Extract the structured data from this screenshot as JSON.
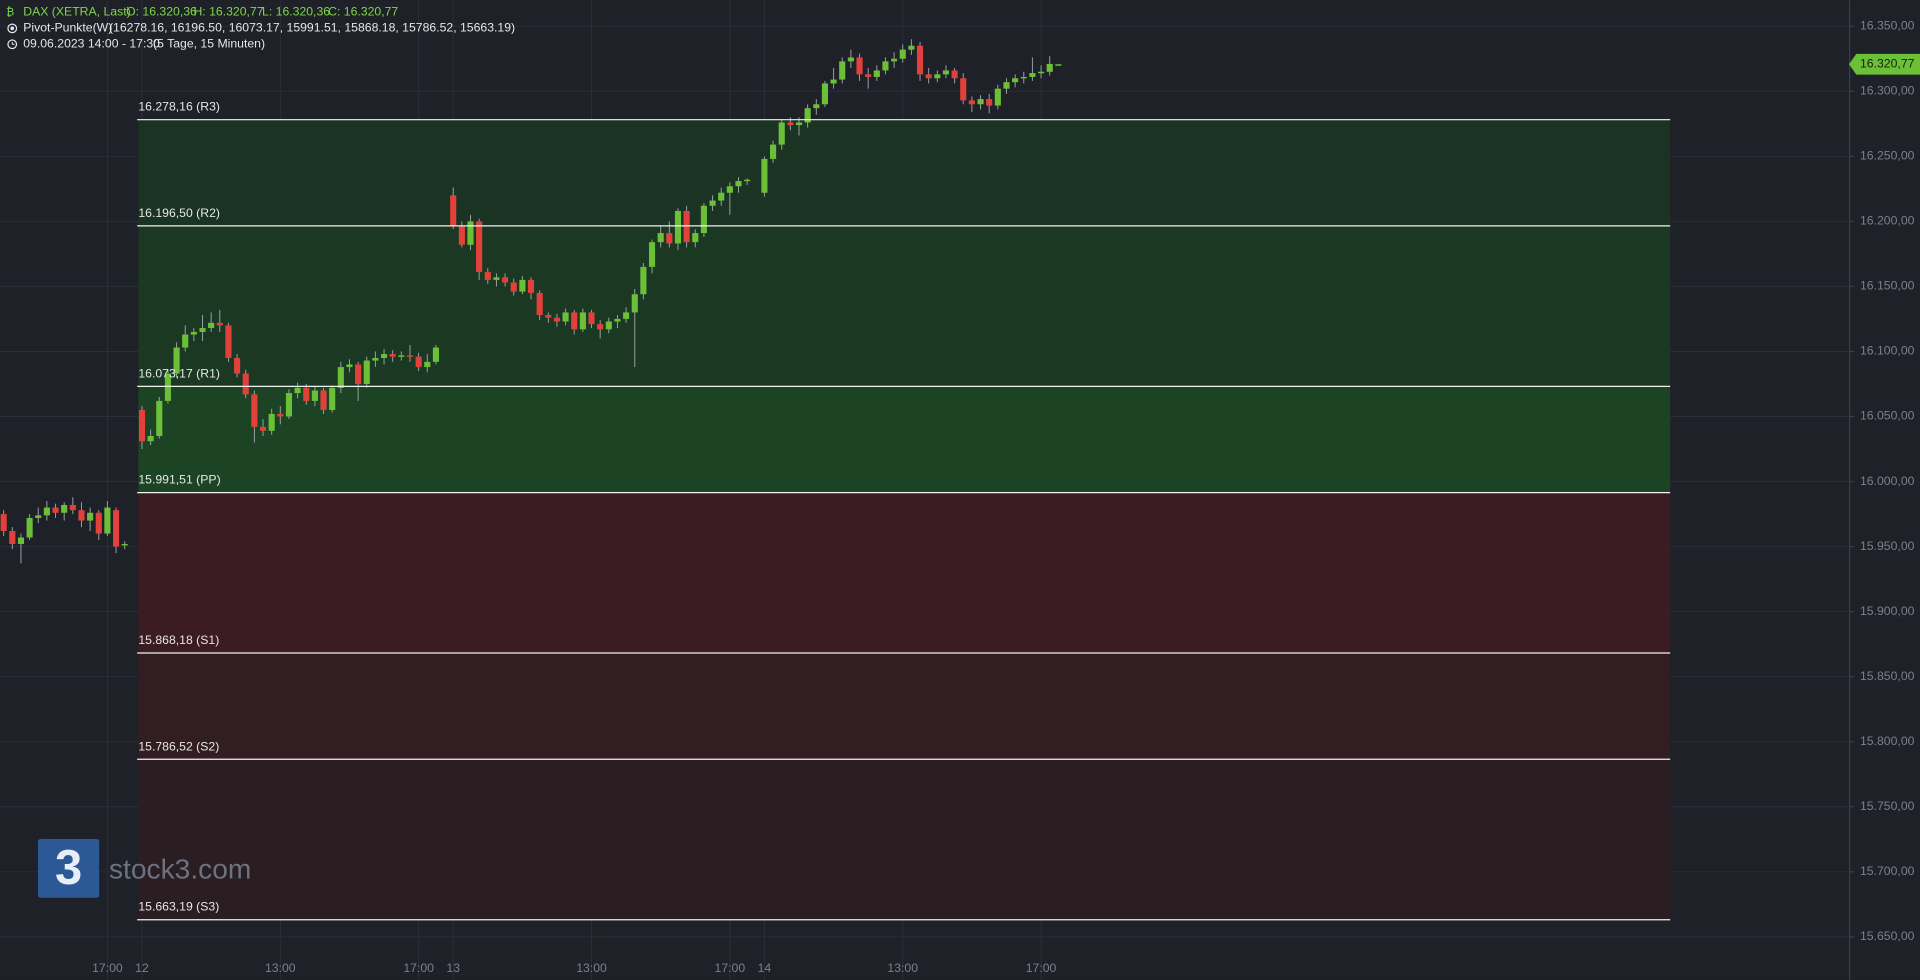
{
  "chart_data": {
    "type": "candlestick",
    "header": {
      "symbol": "DAX (XETRA, Last)",
      "open": "O: 16.320,36",
      "high": "H: 16.320,77",
      "low": "L: 16.320,36",
      "close": "C: 16.320,77",
      "indicator": "Pivot-Punkte(W)",
      "indicator_values": "(16278.16,  16196.50,  16073.17,  15991.51,  15868.18,  15786.52,  15663.19)",
      "range": "09.06.2023 14:00 - 17:30",
      "range_detail": "(5 Tage, 15 Minuten)"
    },
    "watermark": "stock3.com",
    "logo_text": "3",
    "up_color": "#6cc038",
    "down_color": "#e2413b",
    "grid": true,
    "categories": [
      null,
      null,
      null,
      null,
      null,
      null,
      null,
      null,
      null,
      null,
      null,
      null,
      "17:00",
      null,
      null,
      null,
      "12",
      null,
      null,
      null,
      null,
      null,
      null,
      null,
      null,
      null,
      null,
      null,
      null,
      null,
      null,
      null,
      "13:00",
      null,
      null,
      null,
      null,
      null,
      null,
      null,
      null,
      null,
      null,
      null,
      null,
      null,
      null,
      null,
      "17:00",
      null,
      null,
      null,
      "13",
      null,
      null,
      null,
      null,
      null,
      null,
      null,
      null,
      null,
      null,
      null,
      null,
      null,
      null,
      null,
      "13:00",
      null,
      null,
      null,
      null,
      null,
      null,
      null,
      null,
      null,
      null,
      null,
      null,
      null,
      null,
      null,
      "17:00",
      null,
      null,
      null,
      "14",
      null,
      null,
      null,
      null,
      null,
      null,
      null,
      null,
      null,
      null,
      null,
      null,
      null,
      null,
      null,
      "13:00",
      null,
      null,
      null,
      null,
      null,
      null,
      null,
      null,
      null,
      null,
      null,
      null,
      null,
      null,
      null,
      "17:00",
      null,
      null
    ],
    "candles": [
      {
        "o": 15975,
        "h": 15978,
        "l": 15958,
        "c": 15962
      },
      {
        "o": 15962,
        "h": 15965,
        "l": 15948,
        "c": 15952
      },
      {
        "o": 15952,
        "h": 15960,
        "l": 15937,
        "c": 15957
      },
      {
        "o": 15957,
        "h": 15975,
        "l": 15955,
        "c": 15972
      },
      {
        "o": 15972,
        "h": 15980,
        "l": 15968,
        "c": 15974
      },
      {
        "o": 15974,
        "h": 15985,
        "l": 15970,
        "c": 15980
      },
      {
        "o": 15980,
        "h": 15983,
        "l": 15972,
        "c": 15976
      },
      {
        "o": 15976,
        "h": 15984,
        "l": 15970,
        "c": 15982
      },
      {
        "o": 15982,
        "h": 15988,
        "l": 15975,
        "c": 15978
      },
      {
        "o": 15978,
        "h": 15984,
        "l": 15965,
        "c": 15970
      },
      {
        "o": 15970,
        "h": 15980,
        "l": 15962,
        "c": 15976
      },
      {
        "o": 15976,
        "h": 15978,
        "l": 15955,
        "c": 15960
      },
      {
        "o": 15960,
        "h": 15985,
        "l": 15958,
        "c": 15980
      },
      {
        "o": 15978,
        "h": 15980,
        "l": 15945,
        "c": 15950
      },
      {
        "o": 15951,
        "h": 15954,
        "l": 15948,
        "c": 15952
      },
      null,
      {
        "o": 16055,
        "h": 16058,
        "l": 16025,
        "c": 16031
      },
      {
        "o": 16031,
        "h": 16040,
        "l": 16028,
        "c": 16035
      },
      {
        "o": 16035,
        "h": 16065,
        "l": 16033,
        "c": 16062
      },
      {
        "o": 16062,
        "h": 16086,
        "l": 16060,
        "c": 16083
      },
      {
        "o": 16083,
        "h": 16107,
        "l": 16080,
        "c": 16103
      },
      {
        "o": 16103,
        "h": 16120,
        "l": 16100,
        "c": 16113
      },
      {
        "o": 16113,
        "h": 16118,
        "l": 16108,
        "c": 16115
      },
      {
        "o": 16115,
        "h": 16128,
        "l": 16108,
        "c": 16118
      },
      {
        "o": 16118,
        "h": 16130,
        "l": 16115,
        "c": 16122
      },
      {
        "o": 16122,
        "h": 16132,
        "l": 16115,
        "c": 16120
      },
      {
        "o": 16120,
        "h": 16122,
        "l": 16092,
        "c": 16095
      },
      {
        "o": 16095,
        "h": 16098,
        "l": 16080,
        "c": 16083
      },
      {
        "o": 16083,
        "h": 16086,
        "l": 16064,
        "c": 16067
      },
      {
        "o": 16067,
        "h": 16070,
        "l": 16030,
        "c": 16042
      },
      {
        "o": 16042,
        "h": 16048,
        "l": 16035,
        "c": 16039
      },
      {
        "o": 16039,
        "h": 16056,
        "l": 16036,
        "c": 16052
      },
      {
        "o": 16052,
        "h": 16058,
        "l": 16044,
        "c": 16050
      },
      {
        "o": 16050,
        "h": 16071,
        "l": 16048,
        "c": 16068
      },
      {
        "o": 16068,
        "h": 16076,
        "l": 16064,
        "c": 16072
      },
      {
        "o": 16072,
        "h": 16075,
        "l": 16059,
        "c": 16062
      },
      {
        "o": 16062,
        "h": 16073,
        "l": 16058,
        "c": 16070
      },
      {
        "o": 16070,
        "h": 16072,
        "l": 16052,
        "c": 16055
      },
      {
        "o": 16055,
        "h": 16074,
        "l": 16053,
        "c": 16072
      },
      {
        "o": 16072,
        "h": 16092,
        "l": 16068,
        "c": 16088
      },
      {
        "o": 16088,
        "h": 16094,
        "l": 16084,
        "c": 16090
      },
      {
        "o": 16090,
        "h": 16092,
        "l": 16062,
        "c": 16075
      },
      {
        "o": 16075,
        "h": 16096,
        "l": 16072,
        "c": 16093
      },
      {
        "o": 16093,
        "h": 16100,
        "l": 16088,
        "c": 16095
      },
      {
        "o": 16095,
        "h": 16102,
        "l": 16090,
        "c": 16098
      },
      {
        "o": 16098,
        "h": 16101,
        "l": 16092,
        "c": 16096
      },
      {
        "o": 16096,
        "h": 16100,
        "l": 16093,
        "c": 16097
      },
      {
        "o": 16097,
        "h": 16105,
        "l": 16092,
        "c": 16096
      },
      {
        "o": 16096,
        "h": 16099,
        "l": 16085,
        "c": 16088
      },
      {
        "o": 16088,
        "h": 16098,
        "l": 16084,
        "c": 16092
      },
      {
        "o": 16092,
        "h": 16105,
        "l": 16090,
        "c": 16103
      },
      null,
      {
        "o": 16220,
        "h": 16226,
        "l": 16194,
        "c": 16196
      },
      {
        "o": 16196,
        "h": 16200,
        "l": 16180,
        "c": 16182
      },
      {
        "o": 16182,
        "h": 16205,
        "l": 16178,
        "c": 16200
      },
      {
        "o": 16200,
        "h": 16202,
        "l": 16155,
        "c": 16161
      },
      {
        "o": 16161,
        "h": 16164,
        "l": 16152,
        "c": 16155
      },
      {
        "o": 16155,
        "h": 16160,
        "l": 16150,
        "c": 16157
      },
      {
        "o": 16157,
        "h": 16160,
        "l": 16150,
        "c": 16153
      },
      {
        "o": 16153,
        "h": 16156,
        "l": 16143,
        "c": 16146
      },
      {
        "o": 16146,
        "h": 16158,
        "l": 16144,
        "c": 16155
      },
      {
        "o": 16155,
        "h": 16157,
        "l": 16140,
        "c": 16145
      },
      {
        "o": 16145,
        "h": 16147,
        "l": 16124,
        "c": 16128
      },
      {
        "o": 16128,
        "h": 16130,
        "l": 16122,
        "c": 16126
      },
      {
        "o": 16126,
        "h": 16129,
        "l": 16119,
        "c": 16123
      },
      {
        "o": 16123,
        "h": 16133,
        "l": 16120,
        "c": 16130
      },
      {
        "o": 16130,
        "h": 16132,
        "l": 16113,
        "c": 16117
      },
      {
        "o": 16117,
        "h": 16133,
        "l": 16115,
        "c": 16130
      },
      {
        "o": 16130,
        "h": 16132,
        "l": 16118,
        "c": 16121
      },
      {
        "o": 16121,
        "h": 16124,
        "l": 16110,
        "c": 16117
      },
      {
        "o": 16117,
        "h": 16126,
        "l": 16114,
        "c": 16123
      },
      {
        "o": 16123,
        "h": 16128,
        "l": 16118,
        "c": 16125
      },
      {
        "o": 16125,
        "h": 16134,
        "l": 16122,
        "c": 16130
      },
      {
        "o": 16130,
        "h": 16148,
        "l": 16088,
        "c": 16144
      },
      {
        "o": 16144,
        "h": 16168,
        "l": 16140,
        "c": 16165
      },
      {
        "o": 16165,
        "h": 16186,
        "l": 16160,
        "c": 16184
      },
      {
        "o": 16184,
        "h": 16196,
        "l": 16180,
        "c": 16191
      },
      {
        "o": 16191,
        "h": 16200,
        "l": 16180,
        "c": 16183
      },
      {
        "o": 16183,
        "h": 16210,
        "l": 16178,
        "c": 16208
      },
      {
        "o": 16208,
        "h": 16212,
        "l": 16180,
        "c": 16184
      },
      {
        "o": 16184,
        "h": 16194,
        "l": 16180,
        "c": 16191
      },
      {
        "o": 16191,
        "h": 16214,
        "l": 16188,
        "c": 16212
      },
      {
        "o": 16212,
        "h": 16220,
        "l": 16208,
        "c": 16216
      },
      {
        "o": 16216,
        "h": 16226,
        "l": 16212,
        "c": 16222
      },
      {
        "o": 16222,
        "h": 16230,
        "l": 16205,
        "c": 16227
      },
      {
        "o": 16227,
        "h": 16234,
        "l": 16222,
        "c": 16231
      },
      {
        "o": 16231,
        "h": 16233,
        "l": 16228,
        "c": 16232
      },
      null,
      {
        "o": 16222,
        "h": 16250,
        "l": 16219,
        "c": 16248
      },
      {
        "o": 16248,
        "h": 16262,
        "l": 16245,
        "c": 16259
      },
      {
        "o": 16259,
        "h": 16278,
        "l": 16255,
        "c": 16276
      },
      {
        "o": 16276,
        "h": 16280,
        "l": 16270,
        "c": 16274
      },
      {
        "o": 16274,
        "h": 16280,
        "l": 16266,
        "c": 16276
      },
      {
        "o": 16276,
        "h": 16290,
        "l": 16272,
        "c": 16287
      },
      {
        "o": 16287,
        "h": 16294,
        "l": 16282,
        "c": 16290
      },
      {
        "o": 16290,
        "h": 16308,
        "l": 16288,
        "c": 16306
      },
      {
        "o": 16306,
        "h": 16318,
        "l": 16302,
        "c": 16309
      },
      {
        "o": 16309,
        "h": 16326,
        "l": 16306,
        "c": 16323
      },
      {
        "o": 16323,
        "h": 16332,
        "l": 16318,
        "c": 16326
      },
      {
        "o": 16326,
        "h": 16329,
        "l": 16308,
        "c": 16313
      },
      {
        "o": 16313,
        "h": 16318,
        "l": 16302,
        "c": 16311
      },
      {
        "o": 16311,
        "h": 16320,
        "l": 16308,
        "c": 16316
      },
      {
        "o": 16316,
        "h": 16326,
        "l": 16313,
        "c": 16323
      },
      {
        "o": 16323,
        "h": 16330,
        "l": 16318,
        "c": 16325
      },
      {
        "o": 16325,
        "h": 16336,
        "l": 16322,
        "c": 16332
      },
      {
        "o": 16332,
        "h": 16340,
        "l": 16328,
        "c": 16335
      },
      {
        "o": 16335,
        "h": 16338,
        "l": 16308,
        "c": 16313
      },
      {
        "o": 16313,
        "h": 16318,
        "l": 16306,
        "c": 16310
      },
      {
        "o": 16310,
        "h": 16316,
        "l": 16307,
        "c": 16313
      },
      {
        "o": 16313,
        "h": 16320,
        "l": 16310,
        "c": 16316
      },
      {
        "o": 16316,
        "h": 16318,
        "l": 16306,
        "c": 16310
      },
      {
        "o": 16310,
        "h": 16314,
        "l": 16290,
        "c": 16293
      },
      {
        "o": 16293,
        "h": 16296,
        "l": 16284,
        "c": 16290
      },
      {
        "o": 16290,
        "h": 16297,
        "l": 16286,
        "c": 16294
      },
      {
        "o": 16294,
        "h": 16298,
        "l": 16283,
        "c": 16289
      },
      {
        "o": 16289,
        "h": 16305,
        "l": 16286,
        "c": 16302
      },
      {
        "o": 16302,
        "h": 16310,
        "l": 16298,
        "c": 16307
      },
      {
        "o": 16307,
        "h": 16313,
        "l": 16303,
        "c": 16310
      },
      {
        "o": 16310,
        "h": 16315,
        "l": 16306,
        "c": 16311
      },
      {
        "o": 16311,
        "h": 16326,
        "l": 16308,
        "c": 16314
      },
      {
        "o": 16314,
        "h": 16320,
        "l": 16310,
        "c": 16315
      },
      {
        "o": 16315,
        "h": 16327,
        "l": 16312,
        "c": 16321
      },
      {
        "o": 16320.36,
        "h": 16320.77,
        "l": 16320.36,
        "c": 16320.77
      }
    ],
    "pivot_levels": [
      {
        "value": 16278.16,
        "label": "16.278,16 (R3)"
      },
      {
        "value": 16196.5,
        "label": "16.196,50 (R2)"
      },
      {
        "value": 16073.17,
        "label": "16.073,17 (R1)"
      },
      {
        "value": 15991.51,
        "label": "15.991,51 (PP)"
      },
      {
        "value": 15868.18,
        "label": "15.868,18 (S1)"
      },
      {
        "value": 15786.52,
        "label": "15.786,52 (S2)"
      },
      {
        "value": 15663.19,
        "label": "15.663,19 (S3)"
      }
    ],
    "zone_colors": [
      "#1b3323",
      "#1a3822",
      "#1c4324",
      "#3a1c22",
      "#321d22",
      "#2b1e23"
    ],
    "last_price": {
      "value": 16320.77,
      "label": "16.320,77"
    },
    "ylim": [
      15617,
      16370
    ],
    "yticks": [
      {
        "value": 15650,
        "label": "15.650,00"
      },
      {
        "value": 15700,
        "label": "15.700,00"
      },
      {
        "value": 15750,
        "label": "15.750,00"
      },
      {
        "value": 15800,
        "label": "15.800,00"
      },
      {
        "value": 15850,
        "label": "15.850,00"
      },
      {
        "value": 15900,
        "label": "15.900,00"
      },
      {
        "value": 15950,
        "label": "15.950,00"
      },
      {
        "value": 16000,
        "label": "16.000,00"
      },
      {
        "value": 16050,
        "label": "16.050,00"
      },
      {
        "value": 16100,
        "label": "16.100,00"
      },
      {
        "value": 16150,
        "label": "16.150,00"
      },
      {
        "value": 16200,
        "label": "16.200,00"
      },
      {
        "value": 16250,
        "label": "16.250,00"
      },
      {
        "value": 16300,
        "label": "16.300,00"
      },
      {
        "value": 16350,
        "label": "16.350,00"
      }
    ]
  }
}
